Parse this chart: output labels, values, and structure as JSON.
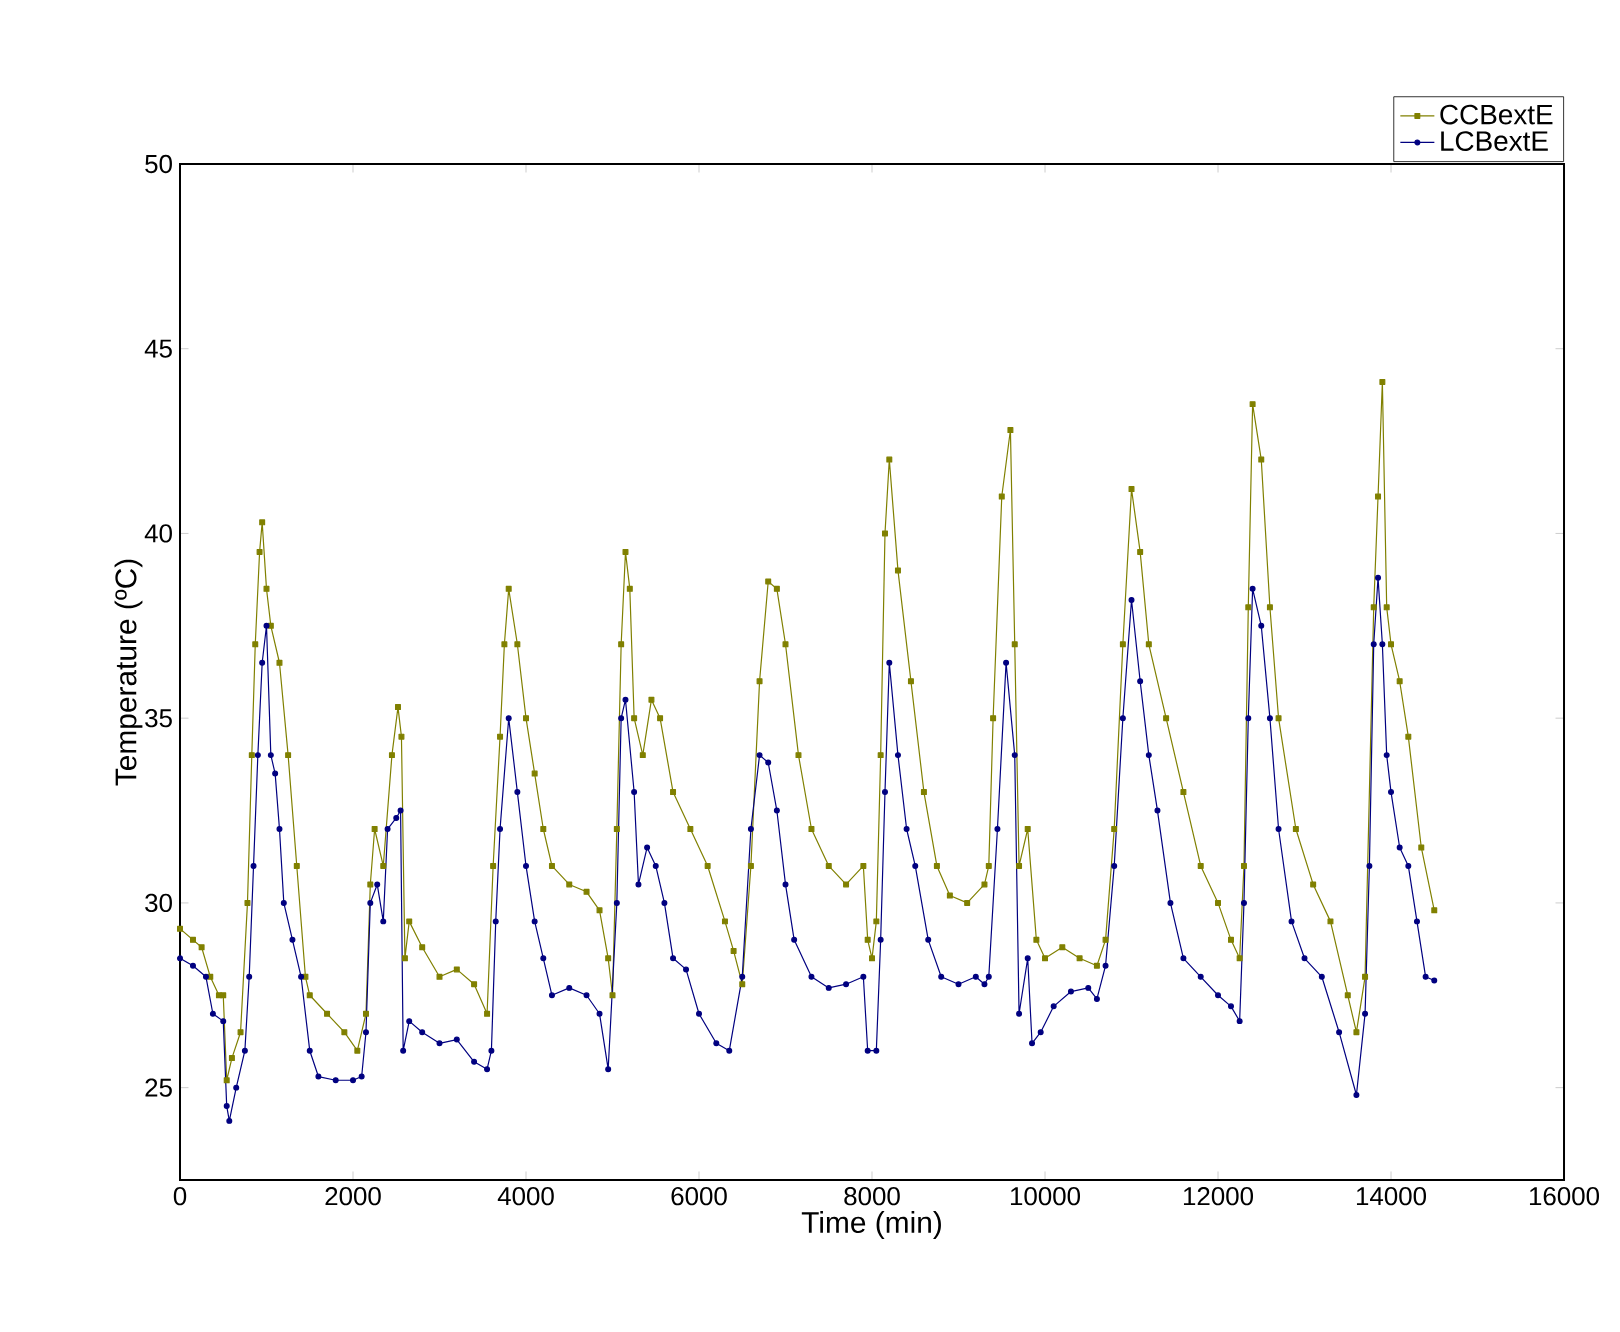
{
  "chart_data": {
    "type": "line",
    "xlabel": "Time (min)",
    "ylabel": "Temperature (ºC)",
    "xlim": [
      0,
      16000
    ],
    "ylim": [
      22.5,
      50
    ],
    "xticks": [
      0,
      2000,
      4000,
      6000,
      8000,
      10000,
      12000,
      14000,
      16000
    ],
    "yticks": [
      25,
      30,
      35,
      40,
      45,
      50
    ],
    "legend": "top right",
    "grid": false,
    "line_style": "solid",
    "series": [
      {
        "name": "CCBextE",
        "color": "#808000",
        "marker": "square",
        "x": [
          0,
          150,
          250,
          350,
          450,
          500,
          540,
          600,
          700,
          780,
          830,
          870,
          920,
          950,
          1000,
          1050,
          1150,
          1250,
          1350,
          1450,
          1500,
          1700,
          1900,
          2050,
          2150,
          2200,
          2250,
          2350,
          2450,
          2520,
          2560,
          2600,
          2650,
          2800,
          3000,
          3200,
          3400,
          3550,
          3620,
          3700,
          3750,
          3800,
          3900,
          4000,
          4100,
          4200,
          4300,
          4500,
          4700,
          4850,
          4950,
          5000,
          5050,
          5100,
          5150,
          5200,
          5250,
          5350,
          5450,
          5550,
          5700,
          5900,
          6100,
          6300,
          6400,
          6500,
          6600,
          6700,
          6800,
          6900,
          7000,
          7150,
          7300,
          7500,
          7700,
          7900,
          7950,
          8000,
          8050,
          8100,
          8150,
          8200,
          8300,
          8450,
          8600,
          8750,
          8900,
          9100,
          9300,
          9350,
          9400,
          9500,
          9600,
          9650,
          9700,
          9800,
          9900,
          10000,
          10200,
          10400,
          10600,
          10700,
          10800,
          10900,
          11000,
          11100,
          11200,
          11400,
          11600,
          11800,
          12000,
          12150,
          12250,
          12300,
          12350,
          12400,
          12500,
          12600,
          12700,
          12900,
          13100,
          13300,
          13500,
          13600,
          13700,
          13800,
          13850,
          13900,
          13950,
          14000,
          14100,
          14200,
          14350,
          14500
        ],
        "values": [
          29.3,
          29.0,
          28.8,
          28.0,
          27.5,
          27.5,
          25.2,
          25.8,
          26.5,
          30,
          34,
          37,
          39.5,
          40.3,
          38.5,
          37.5,
          36.5,
          34,
          31,
          28,
          27.5,
          27,
          26.5,
          26.0,
          27,
          30.5,
          32,
          31,
          34,
          35.3,
          34.5,
          28.5,
          29.5,
          28.8,
          28.0,
          28.2,
          27.8,
          27.0,
          31,
          34.5,
          37,
          38.5,
          37,
          35,
          33.5,
          32,
          31,
          30.5,
          30.3,
          29.8,
          28.5,
          27.5,
          32,
          37,
          39.5,
          38.5,
          35,
          34,
          35.5,
          35,
          33,
          32,
          31,
          29.5,
          28.7,
          27.8,
          31,
          36,
          38.7,
          38.5,
          37,
          34,
          32,
          31,
          30.5,
          31,
          29,
          28.5,
          29.5,
          34,
          40,
          42,
          39,
          36,
          33,
          31,
          30.2,
          30,
          30.5,
          31,
          35,
          41,
          42.8,
          37,
          31,
          32,
          29,
          28.5,
          28.8,
          28.5,
          28.3,
          29,
          32,
          37,
          41.2,
          39.5,
          37,
          35,
          33,
          31,
          30,
          29,
          28.5,
          31,
          38,
          43.5,
          42,
          38,
          35,
          32,
          30.5,
          29.5,
          27.5,
          26.5,
          28,
          38,
          41,
          44.1,
          38,
          37,
          36,
          34.5,
          31.5,
          29.8
        ]
      },
      {
        "name": "LCBextE",
        "color": "#000080",
        "marker": "circle",
        "x": [
          0,
          150,
          300,
          380,
          500,
          540,
          570,
          650,
          750,
          800,
          850,
          900,
          950,
          1000,
          1050,
          1100,
          1150,
          1200,
          1300,
          1400,
          1500,
          1600,
          1800,
          2000,
          2100,
          2150,
          2200,
          2280,
          2350,
          2400,
          2500,
          2550,
          2580,
          2650,
          2800,
          3000,
          3200,
          3400,
          3550,
          3600,
          3650,
          3700,
          3800,
          3900,
          4000,
          4100,
          4200,
          4300,
          4500,
          4700,
          4850,
          4950,
          5050,
          5100,
          5150,
          5250,
          5300,
          5400,
          5500,
          5600,
          5700,
          5850,
          6000,
          6200,
          6350,
          6500,
          6600,
          6700,
          6800,
          6900,
          7000,
          7100,
          7300,
          7500,
          7700,
          7900,
          7950,
          8050,
          8100,
          8150,
          8200,
          8300,
          8400,
          8500,
          8650,
          8800,
          9000,
          9200,
          9300,
          9350,
          9450,
          9550,
          9650,
          9700,
          9800,
          9850,
          9950,
          10100,
          10300,
          10500,
          10600,
          10700,
          10800,
          10900,
          11000,
          11100,
          11200,
          11300,
          11450,
          11600,
          11800,
          12000,
          12150,
          12250,
          12300,
          12350,
          12400,
          12500,
          12600,
          12700,
          12850,
          13000,
          13200,
          13400,
          13600,
          13700,
          13750,
          13800,
          13850,
          13900,
          13950,
          14000,
          14100,
          14200,
          14300,
          14400,
          14500
        ],
        "values": [
          28.5,
          28.3,
          28.0,
          27.0,
          26.8,
          24.5,
          24.1,
          25,
          26,
          28,
          31,
          34,
          36.5,
          37.5,
          34,
          33.5,
          32,
          30,
          29,
          28,
          26,
          25.3,
          25.2,
          25.2,
          25.3,
          26.5,
          30,
          30.5,
          29.5,
          32,
          32.3,
          32.5,
          26,
          26.8,
          26.5,
          26.2,
          26.3,
          25.7,
          25.5,
          26,
          29.5,
          32,
          35,
          33,
          31,
          29.5,
          28.5,
          27.5,
          27.7,
          27.5,
          27,
          25.5,
          30,
          35,
          35.5,
          33,
          30.5,
          31.5,
          31,
          30,
          28.5,
          28.2,
          27,
          26.2,
          26,
          28,
          32,
          34,
          33.8,
          32.5,
          30.5,
          29,
          28,
          27.7,
          27.8,
          28,
          26,
          26,
          29,
          33,
          36.5,
          34,
          32,
          31,
          29,
          28,
          27.8,
          28,
          27.8,
          28,
          32,
          36.5,
          34,
          27,
          28.5,
          26.2,
          26.5,
          27.2,
          27.6,
          27.7,
          27.4,
          28.3,
          31,
          35,
          38.2,
          36,
          34,
          32.5,
          30,
          28.5,
          28,
          27.5,
          27.2,
          26.8,
          30,
          35,
          38.5,
          37.5,
          35,
          32,
          29.5,
          28.5,
          28,
          26.5,
          24.8,
          27,
          31,
          37,
          38.8,
          37,
          34,
          33,
          31.5,
          31,
          29.5,
          28,
          27.9
        ]
      }
    ]
  }
}
